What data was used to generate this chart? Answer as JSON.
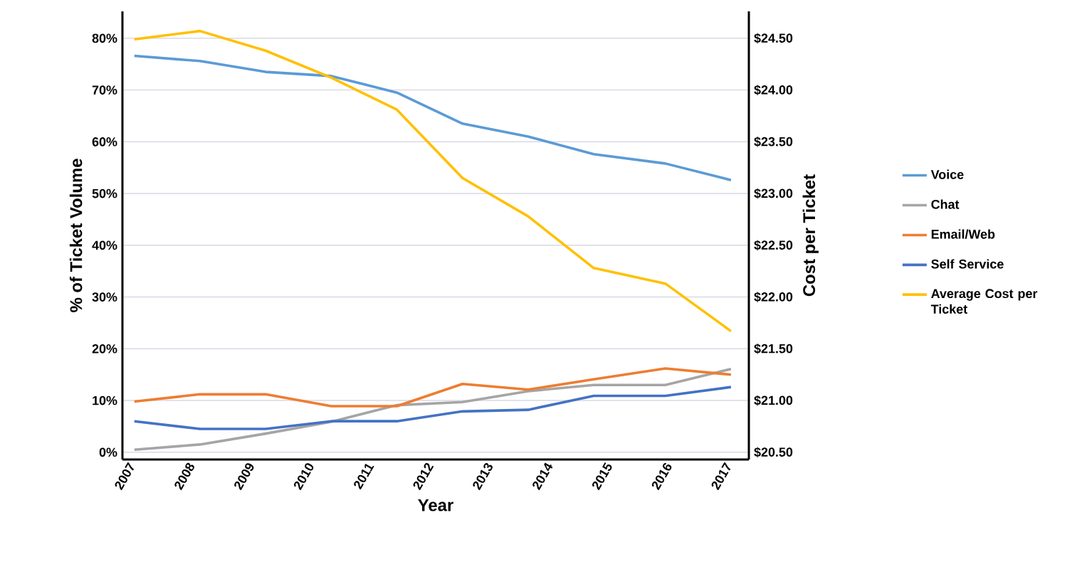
{
  "chart_data": {
    "type": "line",
    "xlabel": "Year",
    "ylabel": "% of Ticket Volume",
    "y2label": "Cost per Ticket",
    "x": [
      2007,
      2008.1,
      2009.2,
      2010.3,
      2011.4,
      2012.5,
      2013.6,
      2014.7,
      2015.9,
      2017
    ],
    "xlim": [
      2006.8,
      2017.3
    ],
    "xticks": [
      2007,
      2008,
      2009,
      2010,
      2011,
      2012,
      2013,
      2014,
      2015,
      2016,
      2017
    ],
    "ylim": [
      -1.4,
      85.2
    ],
    "yticks": [
      {
        "value": 0,
        "label": "0%"
      },
      {
        "value": 10,
        "label": "10%"
      },
      {
        "value": 20,
        "label": "20%"
      },
      {
        "value": 30,
        "label": "30%"
      },
      {
        "value": 40,
        "label": "40%"
      },
      {
        "value": 50,
        "label": "50%"
      },
      {
        "value": 60,
        "label": "60%"
      },
      {
        "value": 70,
        "label": "70%"
      },
      {
        "value": 80,
        "label": "80%"
      }
    ],
    "y2lim": [
      20.43,
      24.76
    ],
    "y2ticks": [
      {
        "value": 20.5,
        "label": "$20.50"
      },
      {
        "value": 21,
        "label": "$21.00"
      },
      {
        "value": 21.5,
        "label": "$21.50"
      },
      {
        "value": 22,
        "label": "$22.00"
      },
      {
        "value": 22.5,
        "label": "$22.50"
      },
      {
        "value": 23,
        "label": "$23.00"
      },
      {
        "value": 23.5,
        "label": "$23.50"
      },
      {
        "value": 24,
        "label": "$24.00"
      },
      {
        "value": 24.5,
        "label": "$24.50"
      }
    ],
    "grid": "y",
    "legend": "right",
    "series": [
      {
        "name": "Voice",
        "color": "#5b9bd5",
        "values": [
          76.6,
          75.6,
          73.5,
          72.7,
          69.5,
          63.5,
          61,
          57.6,
          55.8,
          52.6
        ]
      },
      {
        "name": "Chat",
        "color": "#a5a5a5",
        "values": [
          0.5,
          1.5,
          3.6,
          5.9,
          9.1,
          9.7,
          11.8,
          13,
          13,
          16.1
        ]
      },
      {
        "name": "Email/Web",
        "color": "#ed7d31",
        "values": [
          9.8,
          11.2,
          11.2,
          8.9,
          8.9,
          13.2,
          12.1,
          14.1,
          16.2,
          15
        ]
      },
      {
        "name": "Self Service",
        "color": "#4472c4",
        "values": [
          6,
          4.5,
          4.5,
          6,
          6,
          7.9,
          8.2,
          10.9,
          10.9,
          12.6
        ]
      },
      {
        "name": "Average Cost per Ticket",
        "color": "#ffc000",
        "axis": "y2",
        "values": [
          24.49,
          24.57,
          24.38,
          24.12,
          23.81,
          23.15,
          22.78,
          22.28,
          22.13,
          21.67
        ]
      }
    ]
  }
}
